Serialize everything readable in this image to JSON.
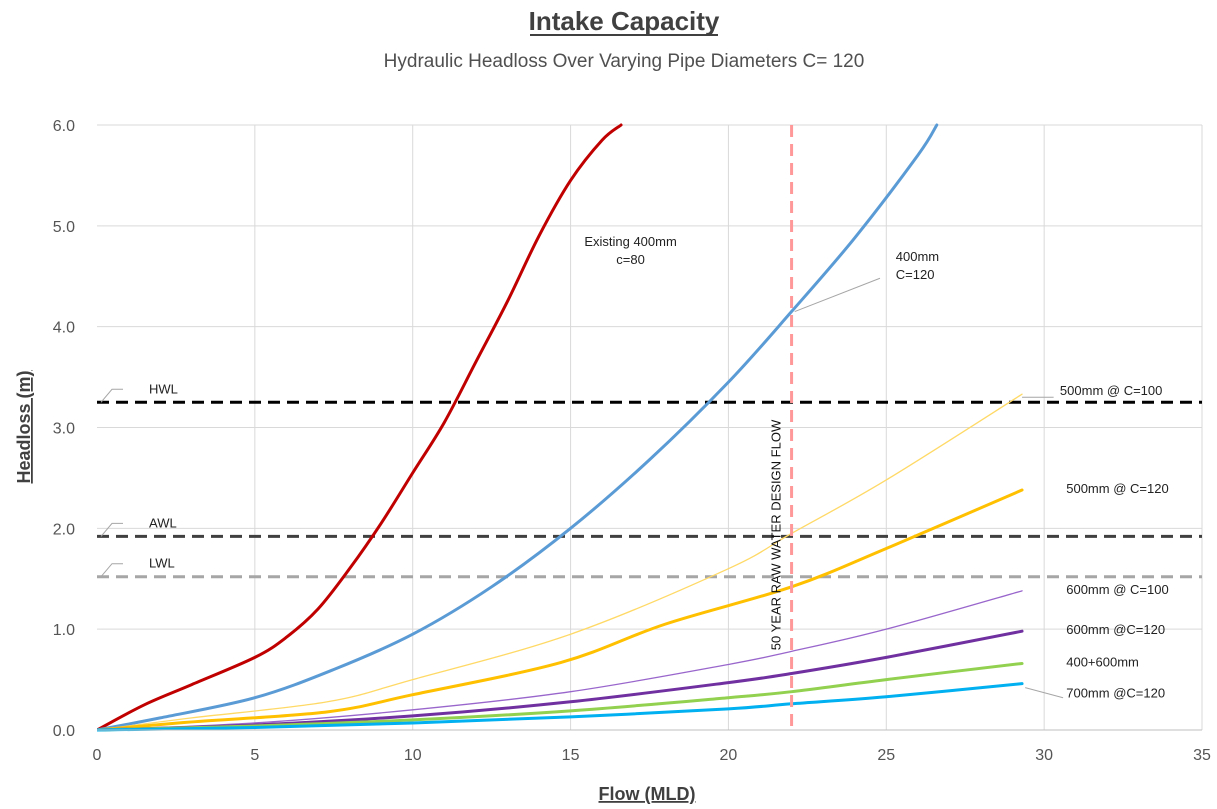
{
  "chart_data": {
    "type": "line",
    "title": "Intake Capacity",
    "subtitle": "Hydraulic Headloss Over Varying Pipe Diameters C= 120",
    "xlabel": "Flow (MLD)",
    "ylabel": "Headloss (m)",
    "xlim": [
      0,
      35
    ],
    "ylim": [
      0,
      6
    ],
    "x_ticks": [
      {
        "value": 0,
        "label": "0"
      },
      {
        "value": 5,
        "label": "5"
      },
      {
        "value": 10,
        "label": "10"
      },
      {
        "value": 15,
        "label": "15"
      },
      {
        "value": 20,
        "label": "20"
      },
      {
        "value": 25,
        "label": "25"
      },
      {
        "value": 30,
        "label": "30"
      },
      {
        "value": 35,
        "label": "35"
      }
    ],
    "y_ticks": [
      {
        "value": 0,
        "label": "0.0"
      },
      {
        "value": 1,
        "label": "1.0"
      },
      {
        "value": 2,
        "label": "2.0"
      },
      {
        "value": 3,
        "label": "3.0"
      },
      {
        "value": 4,
        "label": "4.0"
      },
      {
        "value": 5,
        "label": "5.0"
      },
      {
        "value": 6,
        "label": "6.0"
      }
    ],
    "grid": true,
    "series": [
      {
        "label": "Existing 400mm c=80",
        "color": "#c00000",
        "width": 3,
        "points": [
          [
            0,
            0
          ],
          [
            1.5,
            0.25
          ],
          [
            3,
            0.45
          ],
          [
            5,
            0.72
          ],
          [
            6,
            0.92
          ],
          [
            7,
            1.2
          ],
          [
            8,
            1.6
          ],
          [
            9,
            2.05
          ],
          [
            10,
            2.55
          ],
          [
            11,
            3.05
          ],
          [
            12,
            3.65
          ],
          [
            13,
            4.25
          ],
          [
            14,
            4.9
          ],
          [
            15,
            5.45
          ],
          [
            16,
            5.85
          ],
          [
            16.6,
            6.0
          ]
        ]
      },
      {
        "label": "400mm C=120",
        "color": "#5b9bd5",
        "width": 3,
        "points": [
          [
            0,
            0
          ],
          [
            2,
            0.12
          ],
          [
            5,
            0.32
          ],
          [
            7.5,
            0.6
          ],
          [
            10,
            0.95
          ],
          [
            12.5,
            1.42
          ],
          [
            15,
            2.0
          ],
          [
            17.5,
            2.68
          ],
          [
            20,
            3.45
          ],
          [
            22,
            4.15
          ],
          [
            24,
            4.88
          ],
          [
            26,
            5.7
          ],
          [
            26.6,
            6.0
          ]
        ]
      },
      {
        "label": "500mm @ C=100",
        "color": "#ffd966",
        "width": 1.3,
        "points": [
          [
            0,
            0
          ],
          [
            3,
            0.12
          ],
          [
            7.3,
            0.28
          ],
          [
            10,
            0.5
          ],
          [
            15,
            0.95
          ],
          [
            20,
            1.6
          ],
          [
            22,
            1.95
          ],
          [
            25,
            2.48
          ],
          [
            29.3,
            3.33
          ]
        ]
      },
      {
        "label": "500mm @ C=120",
        "color": "#ffc000",
        "width": 3,
        "points": [
          [
            0,
            0
          ],
          [
            3,
            0.08
          ],
          [
            7.3,
            0.18
          ],
          [
            10,
            0.35
          ],
          [
            14.7,
            0.67
          ],
          [
            18,
            1.05
          ],
          [
            22,
            1.42
          ],
          [
            25,
            1.8
          ],
          [
            29.3,
            2.38
          ]
        ]
      },
      {
        "label": "600mm @ C=100",
        "color": "#9966cc",
        "width": 1.3,
        "points": [
          [
            0,
            0
          ],
          [
            5,
            0.07
          ],
          [
            10,
            0.2
          ],
          [
            15,
            0.38
          ],
          [
            20,
            0.65
          ],
          [
            22,
            0.78
          ],
          [
            25,
            1.0
          ],
          [
            29.3,
            1.38
          ]
        ]
      },
      {
        "label": "600mm @C=120",
        "color": "#7030a0",
        "width": 3,
        "points": [
          [
            0,
            0
          ],
          [
            5,
            0.05
          ],
          [
            10,
            0.14
          ],
          [
            15,
            0.28
          ],
          [
            20,
            0.47
          ],
          [
            22,
            0.56
          ],
          [
            25,
            0.72
          ],
          [
            29.3,
            0.98
          ]
        ]
      },
      {
        "label": "400+600mm",
        "color": "#92d050",
        "width": 3,
        "points": [
          [
            0,
            0
          ],
          [
            5,
            0.04
          ],
          [
            10,
            0.1
          ],
          [
            15,
            0.19
          ],
          [
            20,
            0.32
          ],
          [
            22,
            0.38
          ],
          [
            25,
            0.5
          ],
          [
            29.3,
            0.66
          ]
        ]
      },
      {
        "label": "700mm @C=120",
        "color": "#00b0f0",
        "width": 3,
        "points": [
          [
            0,
            0
          ],
          [
            5,
            0.025
          ],
          [
            10,
            0.07
          ],
          [
            15,
            0.13
          ],
          [
            20,
            0.21
          ],
          [
            22,
            0.26
          ],
          [
            25,
            0.33
          ],
          [
            29.3,
            0.46
          ]
        ]
      }
    ],
    "reference_lines": [
      {
        "label": "HWL",
        "value": 3.25,
        "color": "#000000"
      },
      {
        "label": "AWL",
        "value": 1.92,
        "color": "#404040"
      },
      {
        "label": "LWL",
        "value": 1.52,
        "color": "#a6a6a6"
      }
    ],
    "vertical_line": {
      "label": "50 YEAR RAW WATER DESIGN FLOW",
      "x": 22,
      "color": "#ff9999"
    },
    "annotations": [
      {
        "lines": [
          "Existing 400mm",
          "c=80"
        ],
        "x": 16.9,
        "y": 4.8,
        "anchor": "middle",
        "leader": null
      },
      {
        "lines": [
          "400mm",
          "C=120"
        ],
        "x": 25.3,
        "y": 4.65,
        "anchor": "start",
        "leader": [
          22.1,
          4.15,
          24.8,
          4.48
        ]
      },
      {
        "lines": [
          "500mm @ C=100"
        ],
        "x": 30.5,
        "y": 3.32,
        "anchor": "start",
        "leader": [
          29.3,
          3.3,
          30.3,
          3.3
        ]
      },
      {
        "lines": [
          "500mm @ C=120"
        ],
        "x": 30.7,
        "y": 2.35,
        "anchor": "start",
        "leader": null
      },
      {
        "lines": [
          "600mm @ C=100"
        ],
        "x": 30.7,
        "y": 1.35,
        "anchor": "start",
        "leader": null
      },
      {
        "lines": [
          "600mm @C=120"
        ],
        "x": 30.7,
        "y": 0.95,
        "anchor": "start",
        "leader": null
      },
      {
        "lines": [
          "400+600mm"
        ],
        "x": 30.7,
        "y": 0.63,
        "anchor": "start",
        "leader": null
      },
      {
        "lines": [
          "700mm @C=120"
        ],
        "x": 30.7,
        "y": 0.32,
        "anchor": "start",
        "leader": [
          29.4,
          0.42,
          30.6,
          0.32
        ]
      }
    ]
  }
}
